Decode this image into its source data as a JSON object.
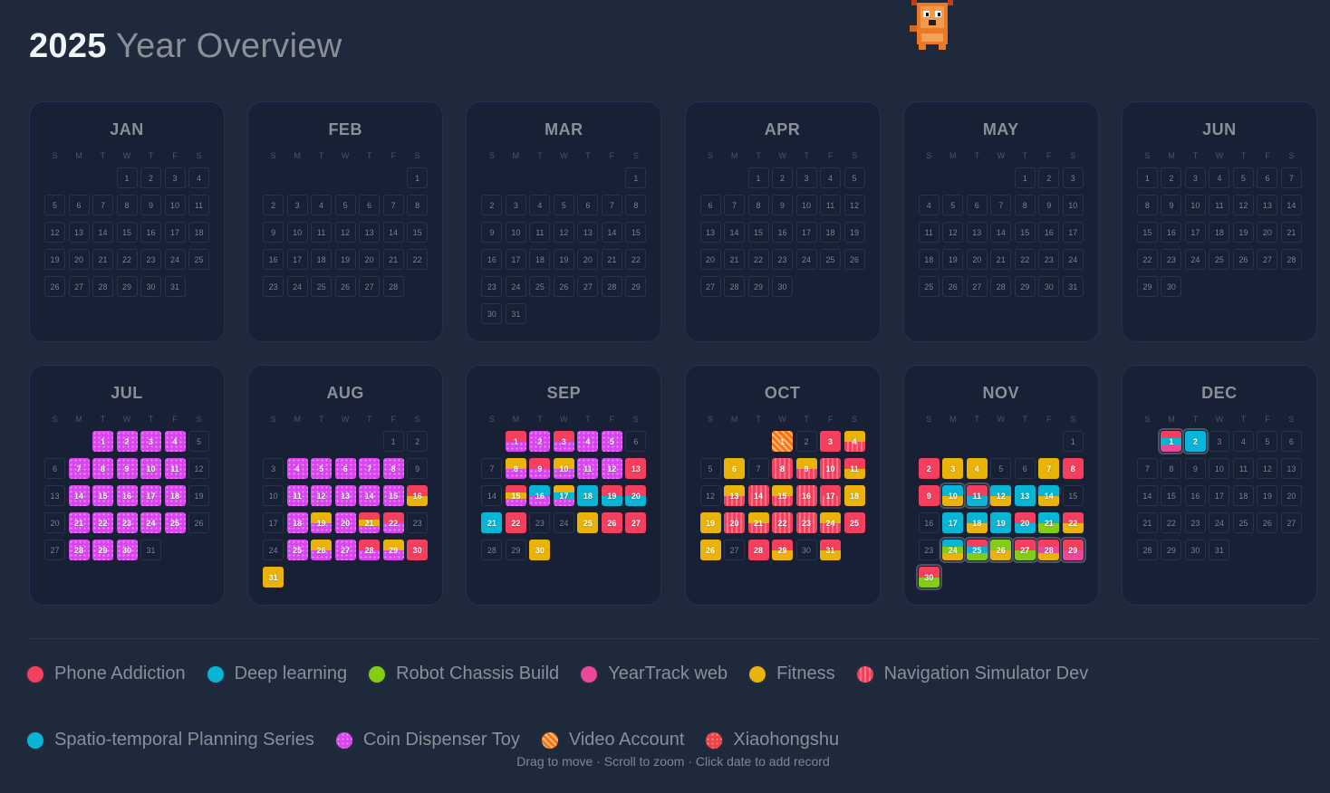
{
  "header": {
    "year": "2025",
    "title_rest": "Year Overview"
  },
  "weekdays": [
    "S",
    "M",
    "T",
    "W",
    "T",
    "F",
    "S"
  ],
  "projects": {
    "phone": {
      "name": "Phone Addiction",
      "color": "#f43f5e",
      "pattern": "solid"
    },
    "deep": {
      "name": "Deep learning",
      "color": "#06b6d4",
      "pattern": "solid"
    },
    "robot": {
      "name": "Robot Chassis Build",
      "color": "#84cc16",
      "pattern": "solid"
    },
    "yt": {
      "name": "YearTrack web",
      "color": "#ec4899",
      "pattern": "solid"
    },
    "fit": {
      "name": "Fitness",
      "color": "#eab308",
      "pattern": "solid"
    },
    "nav": {
      "name": "Navigation Simulator Dev",
      "color": "#f43f5e",
      "pattern": "vstripe"
    },
    "st": {
      "name": "Spatio-temporal Planning Series",
      "color": "#06b6d4",
      "pattern": "solid"
    },
    "coin": {
      "name": "Coin Dispenser Toy",
      "color": "#d946ef",
      "pattern": "dots"
    },
    "video": {
      "name": "Video Account",
      "color": "#f97316",
      "pattern": "diag"
    },
    "xhs": {
      "name": "Xiaohongshu",
      "color": "#ef4444",
      "pattern": "dots"
    }
  },
  "legend": [
    "phone",
    "deep",
    "robot",
    "yt",
    "fit",
    "nav",
    "st",
    "coin",
    "video",
    "xhs"
  ],
  "months": [
    {
      "name": "JAN",
      "start": 3,
      "days": 31,
      "records": {}
    },
    {
      "name": "FEB",
      "start": 6,
      "days": 28,
      "records": {}
    },
    {
      "name": "MAR",
      "start": 6,
      "days": 31,
      "records": {}
    },
    {
      "name": "APR",
      "start": 2,
      "days": 30,
      "records": {}
    },
    {
      "name": "MAY",
      "start": 4,
      "days": 31,
      "records": {}
    },
    {
      "name": "JUN",
      "start": 0,
      "days": 30,
      "records": {}
    },
    {
      "name": "JUL",
      "start": 2,
      "days": 31,
      "records": {
        "1": [
          "coin"
        ],
        "2": [
          "coin"
        ],
        "3": [
          "coin"
        ],
        "4": [
          "coin"
        ],
        "7": [
          "coin"
        ],
        "8": [
          "coin"
        ],
        "9": [
          "coin"
        ],
        "10": [
          "coin"
        ],
        "11": [
          "coin"
        ],
        "14": [
          "coin"
        ],
        "15": [
          "coin"
        ],
        "16": [
          "coin"
        ],
        "17": [
          "coin"
        ],
        "18": [
          "coin"
        ],
        "21": [
          "coin"
        ],
        "22": [
          "coin"
        ],
        "23": [
          "coin"
        ],
        "24": [
          "coin"
        ],
        "25": [
          "coin"
        ],
        "28": [
          "coin"
        ],
        "29": [
          "coin"
        ],
        "30": [
          "coin"
        ]
      }
    },
    {
      "name": "AUG",
      "start": 5,
      "days": 31,
      "records": {
        "4": [
          "coin"
        ],
        "5": [
          "coin"
        ],
        "6": [
          "coin"
        ],
        "7": [
          "coin"
        ],
        "8": [
          "coin"
        ],
        "11": [
          "coin"
        ],
        "12": [
          "coin"
        ],
        "13": [
          "coin"
        ],
        "14": [
          "coin"
        ],
        "15": [
          "coin"
        ],
        "16": [
          "phone",
          "fit"
        ],
        "18": [
          "coin"
        ],
        "19": [
          "fit",
          "coin"
        ],
        "20": [
          "coin"
        ],
        "21": [
          "phone",
          "fit",
          "coin"
        ],
        "22": [
          "phone",
          "coin"
        ],
        "25": [
          "coin"
        ],
        "26": [
          "fit",
          "coin"
        ],
        "27": [
          "coin"
        ],
        "28": [
          "phone",
          "coin"
        ],
        "29": [
          "fit",
          "coin"
        ],
        "30": [
          "phone"
        ],
        "31": [
          "fit"
        ]
      }
    },
    {
      "name": "SEP",
      "start": 1,
      "days": 30,
      "records": {
        "1": [
          "phone",
          "coin"
        ],
        "2": [
          "coin"
        ],
        "3": [
          "phone",
          "coin"
        ],
        "4": [
          "coin"
        ],
        "5": [
          "coin"
        ],
        "8": [
          "fit",
          "coin"
        ],
        "9": [
          "phone",
          "coin"
        ],
        "10": [
          "fit",
          "coin"
        ],
        "11": [
          "coin"
        ],
        "12": [
          "coin"
        ],
        "13": [
          "phone"
        ],
        "15": [
          "phone",
          "fit",
          "coin"
        ],
        "16": [
          "deep",
          "coin"
        ],
        "17": [
          "fit",
          "deep",
          "coin"
        ],
        "18": [
          "deep"
        ],
        "19": [
          "phone",
          "deep"
        ],
        "20": [
          "phone",
          "deep"
        ],
        "21": [
          "deep"
        ],
        "22": [
          "phone"
        ],
        "25": [
          "fit"
        ],
        "26": [
          "phone"
        ],
        "27": [
          "phone"
        ],
        "30": [
          "fit"
        ]
      }
    },
    {
      "name": "OCT",
      "start": 3,
      "days": 31,
      "records": {
        "1": [
          "video"
        ],
        "3": [
          "phone"
        ],
        "4": [
          "fit",
          "nav"
        ],
        "6": [
          "fit"
        ],
        "8": [
          "nav"
        ],
        "9": [
          "fit",
          "nav"
        ],
        "10": [
          "nav"
        ],
        "11": [
          "phone",
          "fit"
        ],
        "13": [
          "fit",
          "nav"
        ],
        "14": [
          "nav"
        ],
        "15": [
          "fit",
          "nav"
        ],
        "16": [
          "nav"
        ],
        "17": [
          "phone",
          "nav"
        ],
        "18": [
          "fit"
        ],
        "19": [
          "fit"
        ],
        "20": [
          "nav"
        ],
        "21": [
          "fit",
          "nav"
        ],
        "22": [
          "nav"
        ],
        "23": [
          "nav"
        ],
        "24": [
          "fit",
          "nav"
        ],
        "25": [
          "phone"
        ],
        "26": [
          "fit"
        ],
        "28": [
          "phone"
        ],
        "29": [
          "phone",
          "fit"
        ],
        "31": [
          "phone",
          "fit"
        ]
      }
    },
    {
      "name": "NOV",
      "start": 6,
      "days": 30,
      "selected": [
        10,
        11,
        24,
        25,
        26,
        27,
        28,
        29,
        30
      ],
      "records": {
        "2": [
          "phone"
        ],
        "3": [
          "fit"
        ],
        "4": [
          "fit"
        ],
        "7": [
          "fit"
        ],
        "8": [
          "phone"
        ],
        "9": [
          "phone"
        ],
        "10": [
          "deep",
          "fit"
        ],
        "11": [
          "phone",
          "deep"
        ],
        "12": [
          "deep",
          "fit"
        ],
        "13": [
          "deep"
        ],
        "14": [
          "deep",
          "fit"
        ],
        "17": [
          "deep"
        ],
        "18": [
          "deep",
          "fit"
        ],
        "19": [
          "deep"
        ],
        "20": [
          "phone",
          "deep"
        ],
        "21": [
          "deep",
          "robot"
        ],
        "22": [
          "phone",
          "fit"
        ],
        "24": [
          "deep",
          "robot",
          "fit"
        ],
        "25": [
          "phone",
          "deep",
          "robot"
        ],
        "26": [
          "robot",
          "fit"
        ],
        "27": [
          "phone",
          "robot"
        ],
        "28": [
          "phone",
          "yt",
          "fit"
        ],
        "29": [
          "phone",
          "yt"
        ],
        "30": [
          "phone",
          "robot"
        ]
      }
    },
    {
      "name": "DEC",
      "start": 1,
      "days": 31,
      "selected": [
        1,
        2
      ],
      "records": {
        "1": [
          "phone",
          "deep",
          "yt"
        ],
        "2": [
          "deep"
        ]
      }
    }
  ],
  "footer": {
    "hint": "Drag to move · Scroll to zoom · Click date to add record"
  }
}
